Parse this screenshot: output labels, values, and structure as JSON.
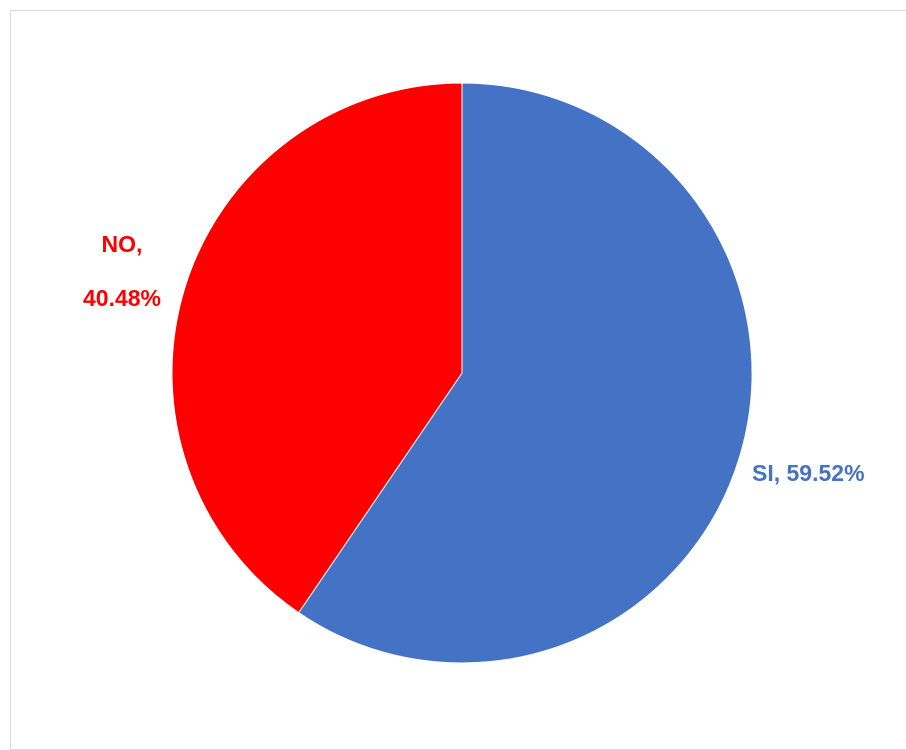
{
  "chart_data": {
    "type": "pie",
    "title": "",
    "start_angle_deg": 0,
    "direction": "clockwise",
    "slices": [
      {
        "label": "SI",
        "value": 59.52,
        "value_label": "59.52%",
        "color": "#4472C4"
      },
      {
        "label": "NO",
        "value": 40.48,
        "value_label": "40.48%",
        "color": "#FF0000"
      }
    ],
    "legend": "none"
  },
  "labels": {
    "si_line1": "SI, 59.52%",
    "no_line1": "NO,",
    "no_line2": "40.48%"
  }
}
